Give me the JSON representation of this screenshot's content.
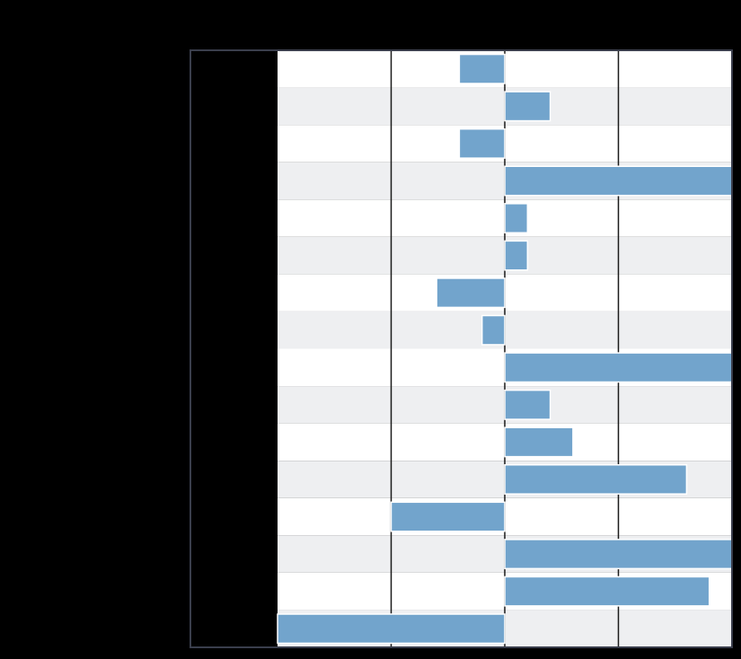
{
  "colors": {
    "background": "#000000",
    "band_light": "#ffffff",
    "band_shaded": "#eeeff1",
    "bar": "#72a4cc",
    "bar_edge": "#ffffff",
    "gridline": "#1a1a1a",
    "frame": "#3a3e4c"
  },
  "chart_data": {
    "type": "bar",
    "orientation": "horizontal",
    "categories": [
      "",
      "",
      "",
      "",
      "",
      "",
      "",
      "",
      "",
      "",
      "",
      "",
      "",
      "",
      "",
      ""
    ],
    "values": [
      -2,
      2,
      -2,
      10,
      1,
      1,
      -3,
      -1,
      10,
      2,
      3,
      8,
      -5,
      10,
      9,
      -10
    ],
    "xlim": [
      -10,
      10
    ],
    "x_gridlines": [
      -5,
      0,
      5
    ],
    "title": "",
    "xlabel": "",
    "ylabel": "",
    "grid": "vertical",
    "row_banding": true
  }
}
